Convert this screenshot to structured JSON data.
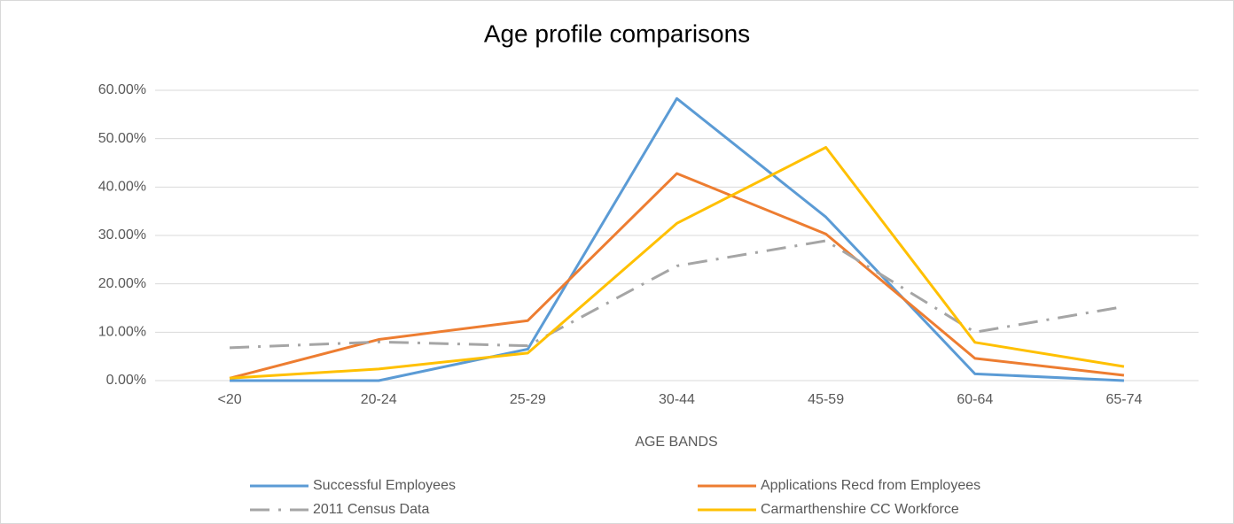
{
  "chart_data": {
    "type": "line",
    "title": "Age profile comparisons",
    "x_label": "AGE BANDS",
    "categories": [
      "<20",
      "20-24",
      "25-29",
      "30-44",
      "45-59",
      "60-64",
      "65-74"
    ],
    "series": [
      {
        "name": "Successful Employees",
        "color": "#5b9bd5",
        "dash": "solid",
        "values": [
          0,
          0,
          6.5,
          58.3,
          33.8,
          1.4,
          0
        ]
      },
      {
        "name": "Applications Recd from Employees",
        "color": "#ed7d31",
        "dash": "solid",
        "values": [
          0.5,
          8.5,
          12.4,
          42.8,
          30.3,
          4.6,
          1.1
        ]
      },
      {
        "name": "2011 Census Data",
        "color": "#a5a5a5",
        "dash": "dash-dot",
        "values": [
          6.8,
          8.0,
          7.2,
          23.7,
          28.9,
          10.0,
          15.3
        ]
      },
      {
        "name": "Carmarthenshire CC Workforce",
        "color": "#ffc000",
        "dash": "solid",
        "values": [
          0.5,
          2.4,
          5.7,
          32.5,
          48.2,
          7.9,
          2.9
        ]
      }
    ],
    "ylim": [
      0,
      60
    ],
    "yticks": [
      {
        "value": 0,
        "label": "0.00%"
      },
      {
        "value": 10,
        "label": "10.00%"
      },
      {
        "value": 20,
        "label": "20.00%"
      },
      {
        "value": 30,
        "label": "30.00%"
      },
      {
        "value": 40,
        "label": "40.00%"
      },
      {
        "value": 50,
        "label": "50.00%"
      },
      {
        "value": 60,
        "label": "60.00%"
      }
    ],
    "grid": true,
    "legend": "bottom"
  }
}
